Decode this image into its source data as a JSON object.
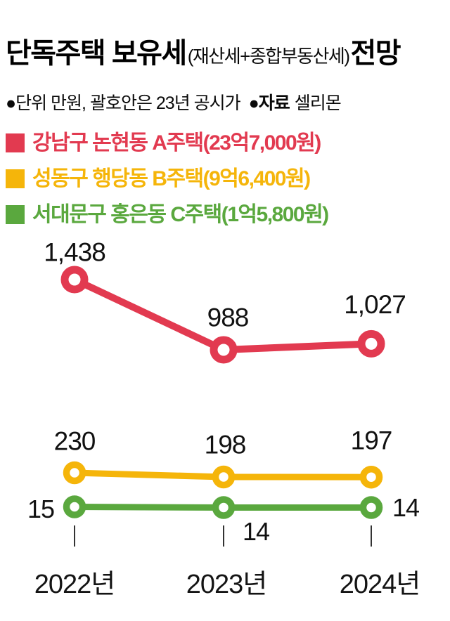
{
  "title": {
    "main": "단독주택 보유세",
    "paren": "(재산세+종합부동산세)",
    "suffix": "전망"
  },
  "subtitle": {
    "unit_note": "●단위 만원, 괄호안은 23년 공시가",
    "source_key": "●자료",
    "source_value": "셀리몬"
  },
  "legend": [
    {
      "label": "강남구 논현동 A주택(23억7,000원)",
      "color": "#e23a50"
    },
    {
      "label": "성동구 행당동 B주택(9억6,400원)",
      "color": "#f5b50a"
    },
    {
      "label": "서대문구 홍은동 C주택(1억5,800원)",
      "color": "#5aa83e"
    }
  ],
  "chart_data": {
    "type": "line",
    "title": "단독주택 보유세(재산세+종합부동산세) 전망",
    "unit": "만원",
    "note": "괄호안은 23년 공시가",
    "source": "셀리몬",
    "grid": false,
    "legend_position": "top",
    "categories": [
      "2022년",
      "2023년",
      "2024년"
    ],
    "series": [
      {
        "name": "강남구 논현동 A주택",
        "price": "23억7,000원",
        "color": "#e23a50",
        "values": [
          1438,
          988,
          1027
        ],
        "labels": [
          "1,438",
          "988",
          "1,027"
        ]
      },
      {
        "name": "성동구 행당동 B주택",
        "price": "9억6,400원",
        "color": "#f5b50a",
        "values": [
          230,
          198,
          197
        ],
        "labels": [
          "230",
          "198",
          "197"
        ]
      },
      {
        "name": "서대문구 홍은동 C주택",
        "price": "1억5,800원",
        "color": "#5aa83e",
        "values": [
          15,
          14,
          14
        ],
        "labels": [
          "15",
          "14",
          "14"
        ]
      }
    ]
  }
}
